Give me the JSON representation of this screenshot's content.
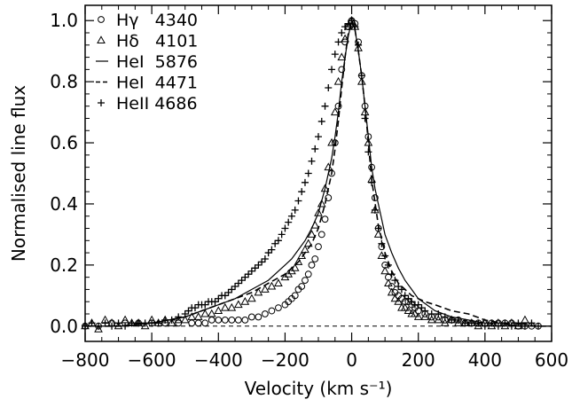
{
  "chart_data": {
    "type": "line",
    "title": "",
    "xlabel": "Velocity (km s⁻¹)",
    "ylabel": "Normalised line flux",
    "xlim": [
      -800,
      600
    ],
    "ylim": [
      -0.05,
      1.05
    ],
    "xticks": [
      -800,
      -600,
      -400,
      -200,
      0,
      200,
      400,
      600
    ],
    "yticks": [
      0.0,
      0.2,
      0.4,
      0.6,
      0.8,
      1.0
    ],
    "xtick_labels": [
      "−800",
      "−600",
      "−400",
      "−200",
      "0",
      "200",
      "400",
      "600"
    ],
    "ytick_labels": [
      "0.0",
      "0.2",
      "0.4",
      "0.6",
      "0.8",
      "1.0"
    ],
    "zero_line": 0.0,
    "grid": false,
    "legend_position": "top-left",
    "series": [
      {
        "name": "Hγ   4340",
        "marker": "circle",
        "x": [
          -800,
          -760,
          -720,
          -680,
          -640,
          -600,
          -560,
          -520,
          -480,
          -460,
          -440,
          -420,
          -400,
          -380,
          -360,
          -340,
          -320,
          -300,
          -280,
          -260,
          -240,
          -220,
          -200,
          -190,
          -180,
          -170,
          -160,
          -150,
          -140,
          -130,
          -120,
          -110,
          -100,
          -90,
          -80,
          -70,
          -60,
          -50,
          -40,
          -30,
          -20,
          -10,
          0,
          10,
          20,
          30,
          40,
          50,
          60,
          70,
          80,
          90,
          100,
          110,
          120,
          130,
          140,
          150,
          160,
          170,
          180,
          190,
          200,
          220,
          240,
          260,
          280,
          300,
          320,
          340,
          360,
          380,
          400,
          420,
          440,
          460,
          480,
          500,
          520,
          540,
          560
        ],
        "y": [
          0.0,
          0.0,
          0.01,
          0.01,
          0.01,
          0.01,
          0.01,
          0.01,
          0.01,
          0.01,
          0.01,
          0.02,
          0.02,
          0.02,
          0.02,
          0.02,
          0.02,
          0.03,
          0.03,
          0.04,
          0.05,
          0.06,
          0.07,
          0.08,
          0.09,
          0.1,
          0.12,
          0.13,
          0.15,
          0.17,
          0.2,
          0.22,
          0.26,
          0.3,
          0.35,
          0.42,
          0.5,
          0.6,
          0.72,
          0.84,
          0.93,
          0.98,
          1.0,
          0.99,
          0.93,
          0.82,
          0.72,
          0.62,
          0.52,
          0.42,
          0.32,
          0.26,
          0.2,
          0.16,
          0.13,
          0.11,
          0.1,
          0.09,
          0.08,
          0.08,
          0.07,
          0.06,
          0.05,
          0.04,
          0.03,
          0.03,
          0.02,
          0.02,
          0.02,
          0.01,
          0.01,
          0.01,
          0.01,
          0.01,
          0.01,
          0.01,
          0.01,
          0.0,
          0.0,
          0.0,
          0.0
        ]
      },
      {
        "name": "Hδ   4101",
        "marker": "triangle",
        "x": [
          -800,
          -780,
          -760,
          -740,
          -720,
          -700,
          -680,
          -660,
          -640,
          -620,
          -600,
          -580,
          -560,
          -540,
          -520,
          -500,
          -480,
          -460,
          -440,
          -420,
          -400,
          -380,
          -360,
          -340,
          -320,
          -300,
          -280,
          -260,
          -240,
          -220,
          -200,
          -190,
          -180,
          -170,
          -160,
          -150,
          -140,
          -130,
          -120,
          -110,
          -100,
          -90,
          -80,
          -70,
          -60,
          -50,
          -40,
          -30,
          -20,
          -10,
          0,
          10,
          20,
          30,
          40,
          50,
          60,
          70,
          80,
          90,
          100,
          110,
          120,
          130,
          140,
          150,
          160,
          170,
          180,
          190,
          200,
          220,
          240,
          260,
          280,
          300,
          320,
          340,
          360,
          380,
          400,
          420,
          440,
          460,
          480,
          500,
          520
        ],
        "y": [
          0.0,
          0.01,
          -0.01,
          0.02,
          0.01,
          0.0,
          0.02,
          0.01,
          0.01,
          0.0,
          0.02,
          0.01,
          0.02,
          0.01,
          0.02,
          0.02,
          0.03,
          0.03,
          0.04,
          0.04,
          0.05,
          0.06,
          0.06,
          0.07,
          0.08,
          0.09,
          0.11,
          0.12,
          0.13,
          0.14,
          0.16,
          0.17,
          0.18,
          0.19,
          0.21,
          0.23,
          0.25,
          0.27,
          0.3,
          0.33,
          0.37,
          0.4,
          0.45,
          0.52,
          0.6,
          0.7,
          0.8,
          0.88,
          0.94,
          0.98,
          1.0,
          0.98,
          0.91,
          0.8,
          0.7,
          0.6,
          0.48,
          0.38,
          0.3,
          0.23,
          0.18,
          0.14,
          0.11,
          0.09,
          0.08,
          0.06,
          0.06,
          0.05,
          0.04,
          0.04,
          0.03,
          0.03,
          0.02,
          0.02,
          0.01,
          0.02,
          0.01,
          0.01,
          0.01,
          0.0,
          0.01,
          0.0,
          0.01,
          0.0,
          0.01,
          0.0,
          0.02
        ]
      },
      {
        "name": "HeI  5876",
        "marker": "solid",
        "x": [
          -800,
          -700,
          -600,
          -550,
          -500,
          -450,
          -400,
          -350,
          -300,
          -250,
          -200,
          -180,
          -160,
          -140,
          -120,
          -100,
          -80,
          -60,
          -50,
          -40,
          -30,
          -20,
          -10,
          0,
          10,
          20,
          30,
          40,
          50,
          60,
          70,
          80,
          90,
          100,
          120,
          140,
          160,
          180,
          200,
          250,
          300,
          350,
          400,
          450,
          500,
          550,
          600
        ],
        "y": [
          0.0,
          0.0,
          0.01,
          0.02,
          0.03,
          0.05,
          0.07,
          0.09,
          0.12,
          0.15,
          0.2,
          0.22,
          0.25,
          0.28,
          0.32,
          0.37,
          0.45,
          0.55,
          0.62,
          0.7,
          0.8,
          0.88,
          0.95,
          1.0,
          0.97,
          0.9,
          0.82,
          0.72,
          0.62,
          0.52,
          0.45,
          0.4,
          0.35,
          0.3,
          0.24,
          0.19,
          0.15,
          0.12,
          0.09,
          0.05,
          0.03,
          0.02,
          0.01,
          0.01,
          0.0,
          0.0,
          0.0
        ]
      },
      {
        "name": "HeI  4471",
        "marker": "dashed",
        "x": [
          -800,
          -700,
          -600,
          -550,
          -500,
          -450,
          -400,
          -350,
          -300,
          -250,
          -200,
          -180,
          -160,
          -140,
          -120,
          -100,
          -80,
          -60,
          -50,
          -40,
          -30,
          -20,
          -10,
          0,
          10,
          20,
          30,
          40,
          50,
          60,
          80,
          100,
          120,
          140,
          160,
          180,
          200,
          220,
          250,
          300,
          350,
          400,
          450,
          500,
          550,
          600
        ],
        "y": [
          0.0,
          0.0,
          0.01,
          0.02,
          0.03,
          0.05,
          0.07,
          0.09,
          0.11,
          0.14,
          0.17,
          0.19,
          0.21,
          0.24,
          0.27,
          0.32,
          0.4,
          0.5,
          0.58,
          0.67,
          0.78,
          0.88,
          0.96,
          1.0,
          0.97,
          0.9,
          0.82,
          0.72,
          0.6,
          0.48,
          0.33,
          0.24,
          0.18,
          0.14,
          0.12,
          0.1,
          0.09,
          0.08,
          0.07,
          0.05,
          0.04,
          0.02,
          0.01,
          0.01,
          0.0,
          0.0
        ]
      },
      {
        "name": "HeII 4686",
        "marker": "plus",
        "x": [
          -800,
          -780,
          -760,
          -740,
          -720,
          -700,
          -680,
          -660,
          -640,
          -620,
          -600,
          -580,
          -560,
          -540,
          -520,
          -500,
          -490,
          -480,
          -470,
          -460,
          -450,
          -440,
          -430,
          -420,
          -410,
          -400,
          -390,
          -380,
          -370,
          -360,
          -350,
          -340,
          -330,
          -320,
          -310,
          -300,
          -290,
          -280,
          -270,
          -260,
          -250,
          -240,
          -230,
          -220,
          -210,
          -200,
          -190,
          -180,
          -170,
          -160,
          -150,
          -140,
          -130,
          -120,
          -110,
          -100,
          -90,
          -80,
          -70,
          -60,
          -50,
          -40,
          -30,
          -20,
          -10,
          0,
          10,
          20,
          30,
          40,
          50,
          60,
          70,
          80,
          90,
          100,
          110,
          120,
          130,
          140,
          150,
          160,
          170,
          180,
          190,
          200,
          210,
          220,
          240,
          260,
          280,
          300,
          320,
          340,
          360,
          380,
          400,
          420,
          440,
          460,
          480,
          500,
          520,
          540,
          560
        ],
        "y": [
          0.0,
          0.01,
          0.0,
          0.01,
          0.0,
          0.01,
          0.0,
          0.01,
          0.01,
          0.01,
          0.01,
          0.01,
          0.02,
          0.02,
          0.03,
          0.04,
          0.05,
          0.06,
          0.06,
          0.07,
          0.07,
          0.07,
          0.08,
          0.08,
          0.08,
          0.09,
          0.1,
          0.1,
          0.11,
          0.12,
          0.13,
          0.14,
          0.15,
          0.16,
          0.17,
          0.18,
          0.19,
          0.2,
          0.21,
          0.22,
          0.24,
          0.25,
          0.27,
          0.28,
          0.3,
          0.32,
          0.34,
          0.36,
          0.38,
          0.41,
          0.44,
          0.47,
          0.5,
          0.54,
          0.58,
          0.62,
          0.67,
          0.72,
          0.78,
          0.84,
          0.89,
          0.93,
          0.96,
          0.98,
          0.99,
          1.0,
          0.98,
          0.92,
          0.82,
          0.68,
          0.57,
          0.47,
          0.38,
          0.32,
          0.27,
          0.23,
          0.2,
          0.17,
          0.15,
          0.13,
          0.12,
          0.1,
          0.09,
          0.08,
          0.07,
          0.07,
          0.06,
          0.05,
          0.04,
          0.04,
          0.03,
          0.02,
          0.02,
          0.01,
          0.01,
          0.01,
          0.0,
          0.01,
          0.0,
          0.01,
          0.0,
          0.01,
          0.0,
          0.01,
          0.0
        ]
      }
    ]
  }
}
